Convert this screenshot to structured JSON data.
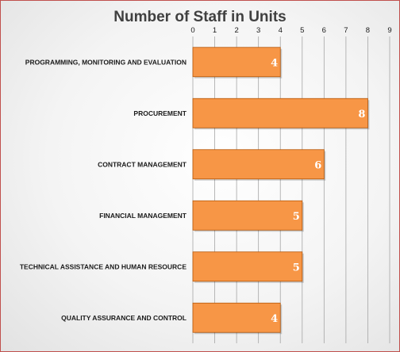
{
  "chart_data": {
    "type": "bar",
    "orientation": "horizontal",
    "title": "Number of Staff in Units",
    "categories": [
      "PROGRAMMING, MONITORING AND EVALUATION",
      "PROCUREMENT",
      "CONTRACT MANAGEMENT",
      "FINANCIAL MANAGEMENT",
      "TECHNICAL ASSISTANCE AND HUMAN RESOURCE",
      "QUALITY ASSURANCE AND CONTROL"
    ],
    "values": [
      4,
      8,
      6,
      5,
      5,
      4
    ],
    "xlim": [
      0,
      9
    ],
    "x_ticks": [
      0,
      1,
      2,
      3,
      4,
      5,
      6,
      7,
      8,
      9
    ],
    "axis_position": "top",
    "grid": "vertical",
    "legend": "none",
    "bar_color": "#f79646",
    "bar_edge_color": "#b65708",
    "data_label_color": "#ffffff"
  }
}
